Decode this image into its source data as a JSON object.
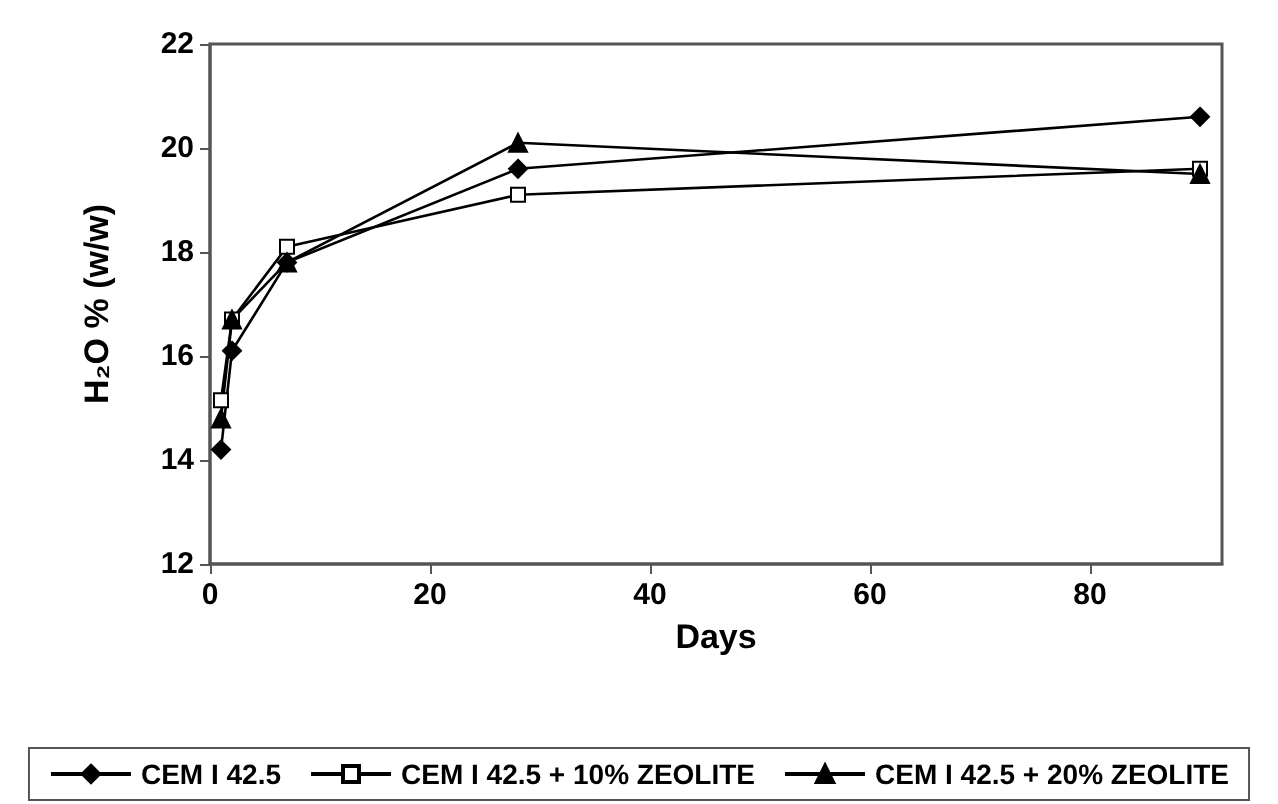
{
  "chart_data": {
    "type": "line",
    "xlabel": "Days",
    "ylabel": "H₂O % (w/w)",
    "x": [
      1,
      2,
      7,
      28,
      90
    ],
    "xlim": [
      0,
      92
    ],
    "xticks": [
      0,
      20,
      40,
      60,
      80
    ],
    "ylim": [
      12,
      22
    ],
    "yticks": [
      12,
      14,
      16,
      18,
      20,
      22
    ],
    "grid": false,
    "legend": "bottom",
    "line_style": "solid",
    "series": [
      {
        "name": "CEM I 42.5",
        "color": "#000000",
        "marker": "diamond",
        "values": [
          14.2,
          16.1,
          17.8,
          19.6,
          20.6
        ]
      },
      {
        "name": "CEM I 42.5 + 10% ZEOLITE",
        "color": "#000000",
        "marker": "square",
        "values": [
          15.15,
          16.7,
          18.1,
          19.1,
          19.6
        ]
      },
      {
        "name": "CEM I 42.5 + 20% ZEOLITE",
        "color": "#000000",
        "marker": "triangle",
        "values": [
          14.8,
          16.7,
          17.8,
          20.1,
          19.5
        ]
      }
    ]
  }
}
